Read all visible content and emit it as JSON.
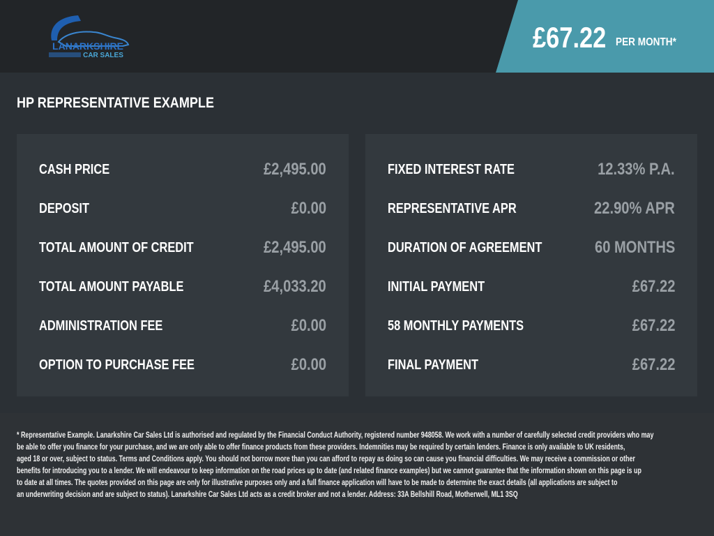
{
  "header": {
    "logo_text": [
      "LANARKSHIRE",
      "CAR SALES"
    ],
    "price": "£67.22",
    "price_suffix": "PER MONTH*",
    "accent_color": "#4a9aab"
  },
  "title": "HP REPRESENTATIVE EXAMPLE",
  "left_panel": [
    {
      "label": "CASH PRICE",
      "value": "£2,495.00"
    },
    {
      "label": "DEPOSIT",
      "value": "£0.00"
    },
    {
      "label": "TOTAL AMOUNT OF CREDIT",
      "value": "£2,495.00"
    },
    {
      "label": "TOTAL AMOUNT PAYABLE",
      "value": "£4,033.20"
    },
    {
      "label": "ADMINISTRATION FEE",
      "value": "£0.00"
    },
    {
      "label": "OPTION TO PURCHASE FEE",
      "value": "£0.00"
    }
  ],
  "right_panel": [
    {
      "label": "FIXED INTEREST RATE",
      "value": "12.33% P.A."
    },
    {
      "label": "REPRESENTATIVE APR",
      "value": "22.90% APR"
    },
    {
      "label": "DURATION OF AGREEMENT",
      "value": "60 MONTHS"
    },
    {
      "label": "INITIAL PAYMENT",
      "value": "£67.22"
    },
    {
      "label": "58 MONTHLY PAYMENTS",
      "value": "£67.22"
    },
    {
      "label": "FINAL PAYMENT",
      "value": "£67.22"
    }
  ],
  "disclaimer": [
    "* Representative Example. Lanarkshire Car Sales Ltd is authorised and regulated by the Financial Conduct Authority, registered number 948058. We work with a number of carefully selected credit providers who may",
    "be able to offer you finance for your purchase, and we are only able to offer finance products from these providers. Indemnities may be required by certain lenders. Finance is only available to UK residents,",
    "aged 18 or over, subject to status. Terms and Conditions apply. You should not borrow more than you can afford to repay as doing so can cause you financial difficulties. We may receive a commission or other",
    "benefits for introducing you to a lender. We will endeavour to keep information on the road prices up to date (and related finance examples) but we cannot guarantee that the information shown on this page is up",
    "to date at all times. The quotes provided on this page are only for illustrative purposes only and a full finance application will have to be made to determine the exact details (all applications are subject to",
    "an underwriting decision and are subject to status). Lanarkshire Car Sales Ltd acts as a credit broker and not a lender. Address: 33A Bellshill Road, Motherwell, ML1 3SQ"
  ]
}
